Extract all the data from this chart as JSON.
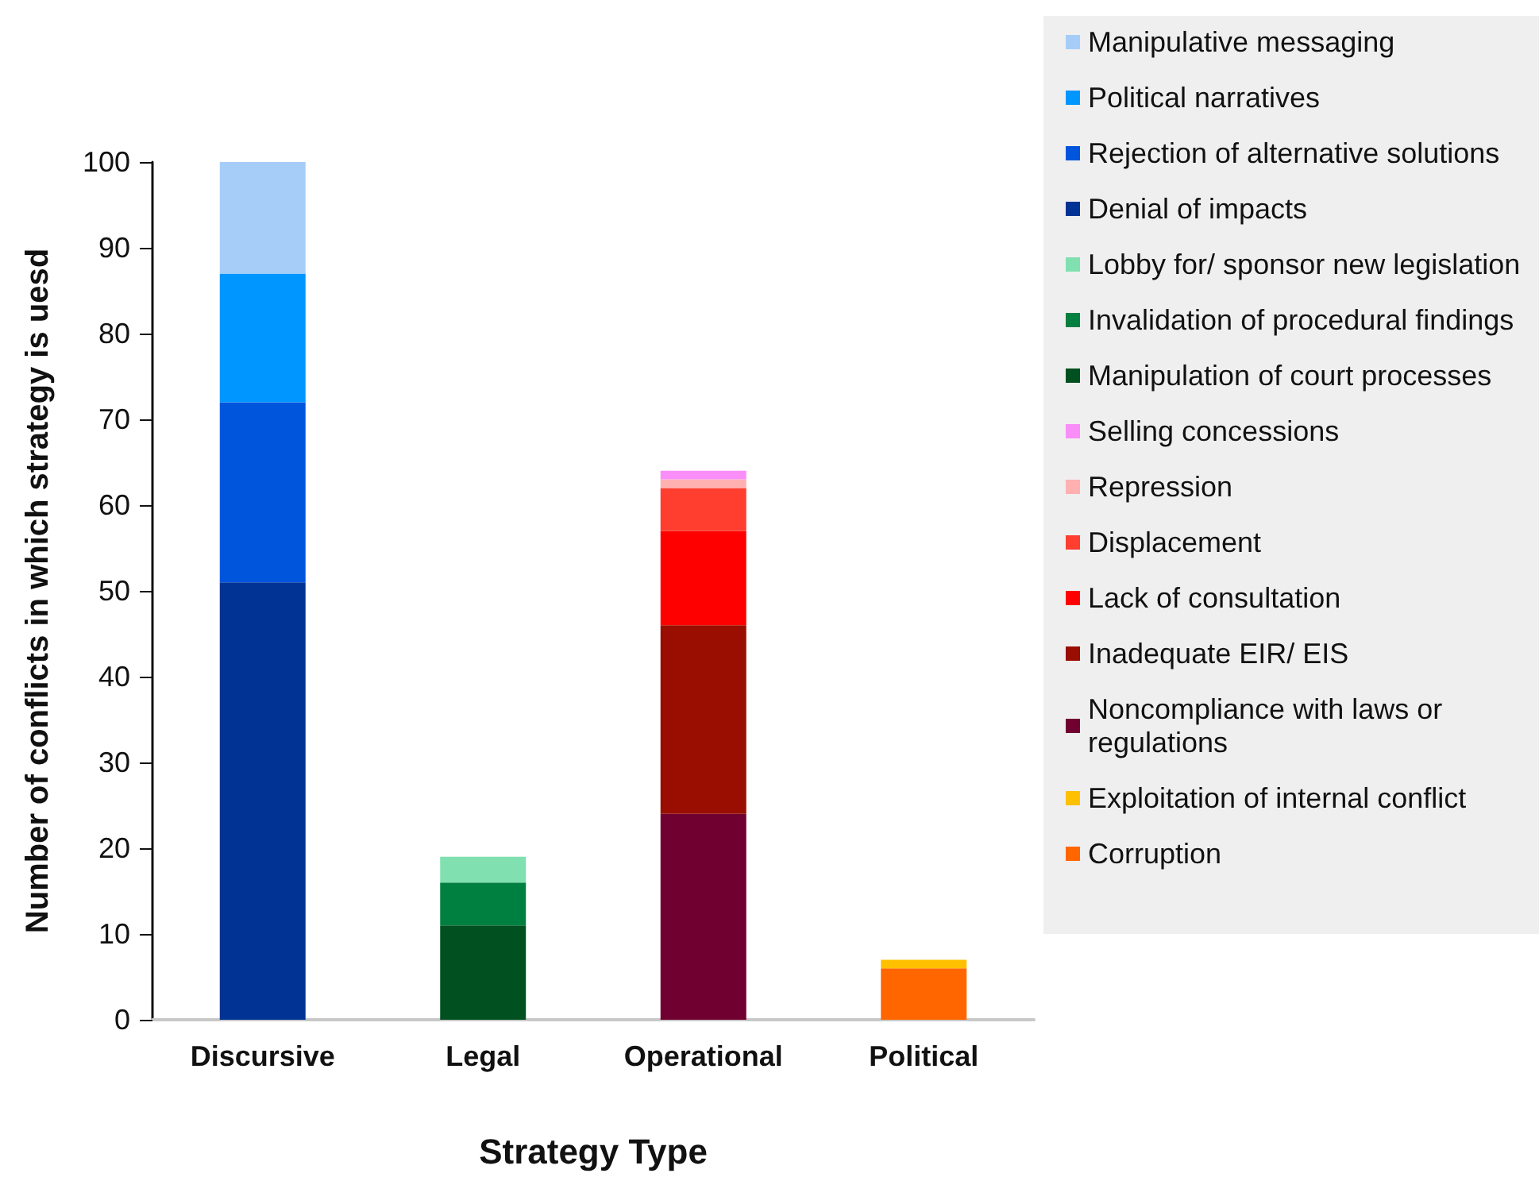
{
  "chart_data": {
    "type": "bar",
    "stacked": true,
    "xlabel": "Strategy Type",
    "ylabel": "Number of conflicts in which strategy is uesd",
    "categories": [
      "Discursive",
      "Legal",
      "Operational",
      "Political"
    ],
    "ylim": [
      0,
      100
    ],
    "yticks": [
      0,
      10,
      20,
      30,
      40,
      50,
      60,
      70,
      80,
      90,
      100
    ],
    "grid": false,
    "legend": "right",
    "series": [
      {
        "name": "Corruption",
        "color": "#ff6600",
        "values": [
          null,
          null,
          null,
          6
        ]
      },
      {
        "name": "Exploitation of internal conflict",
        "color": "#ffc000",
        "values": [
          null,
          null,
          null,
          1
        ]
      },
      {
        "name": "Noncompliance with laws or regulations",
        "color": "#700030",
        "values": [
          null,
          null,
          24,
          null
        ]
      },
      {
        "name": "Inadequate EIR/ EIS",
        "color": "#990e00",
        "values": [
          null,
          null,
          22,
          null
        ]
      },
      {
        "name": "Lack of consultation",
        "color": "#ff0000",
        "values": [
          null,
          null,
          11,
          null
        ]
      },
      {
        "name": "Displacement",
        "color": "#ff3e30",
        "values": [
          null,
          null,
          5,
          null
        ]
      },
      {
        "name": "Repression",
        "color": "#ffb0b0",
        "values": [
          null,
          null,
          1,
          null
        ]
      },
      {
        "name": "Selling concessions",
        "color": "#f98ef9",
        "values": [
          null,
          null,
          1,
          null
        ]
      },
      {
        "name": "Manipulation of court processes",
        "color": "#005020",
        "values": [
          null,
          11,
          null,
          null
        ]
      },
      {
        "name": "Invalidation of procedural findings",
        "color": "#008040",
        "values": [
          null,
          5,
          null,
          null
        ]
      },
      {
        "name": "Lobby for/ sponsor new legislation",
        "color": "#80e0b0",
        "values": [
          null,
          3,
          null,
          null
        ]
      },
      {
        "name": "Denial of impacts",
        "color": "#003393",
        "values": [
          51,
          null,
          null,
          null
        ]
      },
      {
        "name": "Rejection of alternative solutions",
        "color": "#0055dd",
        "values": [
          21,
          null,
          null,
          null
        ]
      },
      {
        "name": "Political narratives",
        "color": "#0096ff",
        "values": [
          15,
          null,
          null,
          null
        ]
      },
      {
        "name": "Manipulative messaging",
        "color": "#a6cdf7",
        "values": [
          13,
          null,
          null,
          null
        ]
      }
    ]
  }
}
